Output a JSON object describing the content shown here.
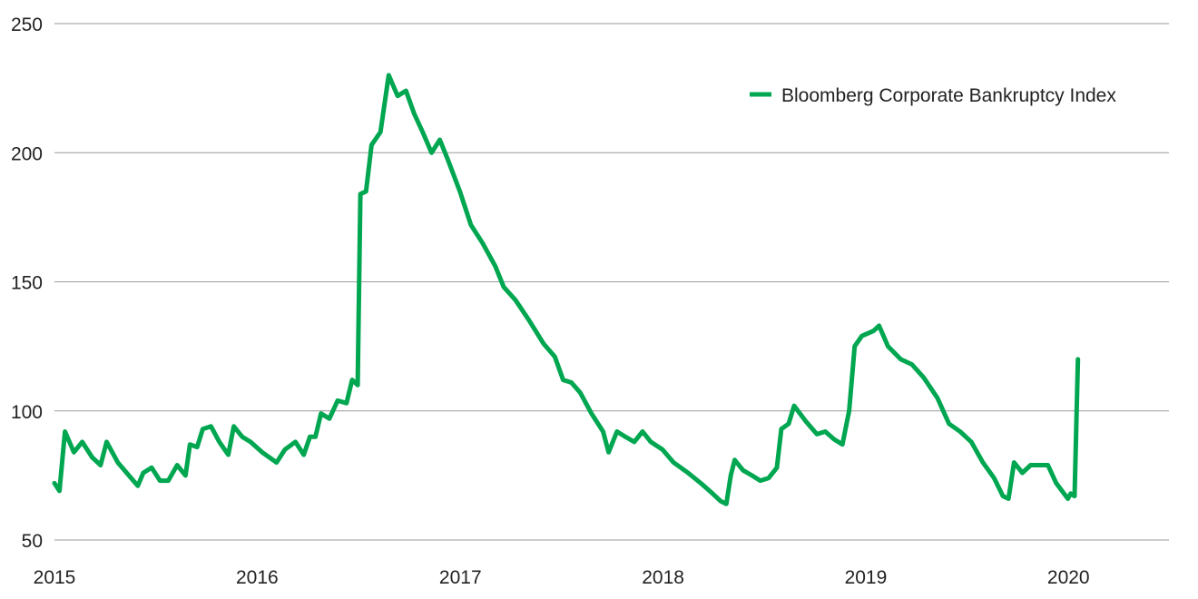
{
  "chart_data": {
    "type": "line",
    "title": "",
    "xlabel": "",
    "ylabel": "",
    "ylim": [
      50,
      250
    ],
    "xlim": [
      "2015-01-01",
      "2020-06-30"
    ],
    "y_ticks": [
      "50",
      "100",
      "150",
      "200",
      "250"
    ],
    "x_ticks": [
      "2015",
      "2016",
      "2017",
      "2018",
      "2019",
      "2020"
    ],
    "grid": "horizontal",
    "legend_position": "top-right",
    "colors": {
      "series": "#00a650",
      "grid": "#9a9a9a",
      "text": "#222222"
    },
    "series": [
      {
        "name": "Bloomberg Corporate Bankruptcy Index",
        "points": [
          [
            "2015-01-01",
            72
          ],
          [
            "2015-01-10",
            69
          ],
          [
            "2015-01-20",
            92
          ],
          [
            "2015-02-05",
            84
          ],
          [
            "2015-02-20",
            88
          ],
          [
            "2015-03-10",
            82
          ],
          [
            "2015-03-25",
            79
          ],
          [
            "2015-04-05",
            88
          ],
          [
            "2015-04-25",
            80
          ],
          [
            "2015-05-15",
            75
          ],
          [
            "2015-05-31",
            71
          ],
          [
            "2015-06-10",
            76
          ],
          [
            "2015-06-25",
            78
          ],
          [
            "2015-07-10",
            73
          ],
          [
            "2015-07-25",
            73
          ],
          [
            "2015-08-10",
            79
          ],
          [
            "2015-08-25",
            75
          ],
          [
            "2015-09-02",
            87
          ],
          [
            "2015-09-15",
            86
          ],
          [
            "2015-09-25",
            93
          ],
          [
            "2015-10-10",
            94
          ],
          [
            "2015-10-25",
            88
          ],
          [
            "2015-11-10",
            83
          ],
          [
            "2015-11-20",
            94
          ],
          [
            "2015-12-05",
            90
          ],
          [
            "2015-12-20",
            88
          ],
          [
            "2016-01-10",
            84
          ],
          [
            "2016-02-05",
            80
          ],
          [
            "2016-02-20",
            85
          ],
          [
            "2016-03-10",
            88
          ],
          [
            "2016-03-25",
            83
          ],
          [
            "2016-04-05",
            90
          ],
          [
            "2016-04-15",
            90
          ],
          [
            "2016-04-25",
            99
          ],
          [
            "2016-05-10",
            97
          ],
          [
            "2016-05-25",
            104
          ],
          [
            "2016-06-10",
            103
          ],
          [
            "2016-06-20",
            112
          ],
          [
            "2016-06-30",
            110
          ],
          [
            "2016-07-05",
            184
          ],
          [
            "2016-07-15",
            185
          ],
          [
            "2016-07-25",
            203
          ],
          [
            "2016-08-10",
            208
          ],
          [
            "2016-08-25",
            230
          ],
          [
            "2016-09-10",
            222
          ],
          [
            "2016-09-25",
            224
          ],
          [
            "2016-10-10",
            215
          ],
          [
            "2016-10-25",
            208
          ],
          [
            "2016-11-10",
            200
          ],
          [
            "2016-11-25",
            205
          ],
          [
            "2016-12-10",
            197
          ],
          [
            "2016-12-31",
            185
          ],
          [
            "2017-01-20",
            172
          ],
          [
            "2017-02-10",
            165
          ],
          [
            "2017-03-05",
            156
          ],
          [
            "2017-03-20",
            148
          ],
          [
            "2017-04-10",
            143
          ],
          [
            "2017-05-05",
            135
          ],
          [
            "2017-05-31",
            126
          ],
          [
            "2017-06-20",
            121
          ],
          [
            "2017-07-05",
            112
          ],
          [
            "2017-07-20",
            111
          ],
          [
            "2017-08-05",
            107
          ],
          [
            "2017-08-25",
            99
          ],
          [
            "2017-09-15",
            92
          ],
          [
            "2017-09-25",
            84
          ],
          [
            "2017-10-10",
            92
          ],
          [
            "2017-10-25",
            90
          ],
          [
            "2017-11-10",
            88
          ],
          [
            "2017-11-25",
            92
          ],
          [
            "2017-12-10",
            88
          ],
          [
            "2017-12-31",
            85
          ],
          [
            "2018-01-20",
            80
          ],
          [
            "2018-02-15",
            76
          ],
          [
            "2018-03-10",
            72
          ],
          [
            "2018-03-31",
            68
          ],
          [
            "2018-04-15",
            65
          ],
          [
            "2018-04-25",
            64
          ],
          [
            "2018-05-03",
            75
          ],
          [
            "2018-05-10",
            81
          ],
          [
            "2018-05-25",
            77
          ],
          [
            "2018-06-10",
            75
          ],
          [
            "2018-06-25",
            73
          ],
          [
            "2018-07-10",
            74
          ],
          [
            "2018-07-25",
            78
          ],
          [
            "2018-08-02",
            93
          ],
          [
            "2018-08-15",
            95
          ],
          [
            "2018-08-25",
            102
          ],
          [
            "2018-09-15",
            96
          ],
          [
            "2018-10-05",
            91
          ],
          [
            "2018-10-20",
            92
          ],
          [
            "2018-11-05",
            89
          ],
          [
            "2018-11-20",
            87
          ],
          [
            "2018-12-02",
            100
          ],
          [
            "2018-12-12",
            125
          ],
          [
            "2018-12-25",
            129
          ],
          [
            "2019-01-15",
            131
          ],
          [
            "2019-01-25",
            133
          ],
          [
            "2019-02-10",
            125
          ],
          [
            "2019-03-05",
            120
          ],
          [
            "2019-03-25",
            118
          ],
          [
            "2019-04-15",
            113
          ],
          [
            "2019-05-10",
            105
          ],
          [
            "2019-05-31",
            95
          ],
          [
            "2019-06-20",
            92
          ],
          [
            "2019-07-10",
            88
          ],
          [
            "2019-07-31",
            80
          ],
          [
            "2019-08-20",
            74
          ],
          [
            "2019-09-05",
            67
          ],
          [
            "2019-09-15",
            66
          ],
          [
            "2019-09-25",
            80
          ],
          [
            "2019-10-10",
            76
          ],
          [
            "2019-10-25",
            79
          ],
          [
            "2019-11-10",
            79
          ],
          [
            "2019-11-25",
            79
          ],
          [
            "2019-12-10",
            72
          ],
          [
            "2019-12-31",
            66
          ],
          [
            "2020-01-05",
            68
          ],
          [
            "2020-01-12",
            67
          ],
          [
            "2020-01-18",
            120
          ]
        ]
      }
    ]
  }
}
